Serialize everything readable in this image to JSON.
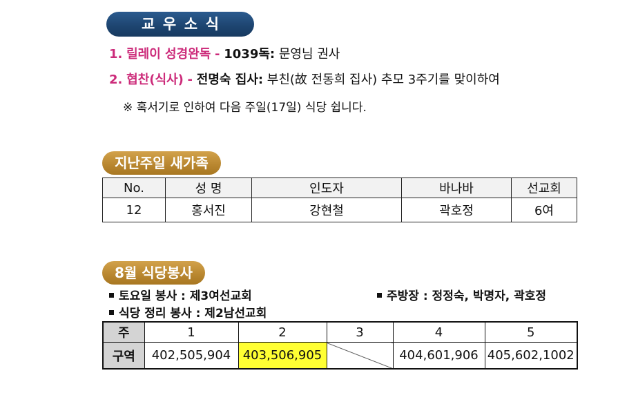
{
  "news": {
    "title": "교우소식",
    "item1": {
      "num": "1.",
      "label": "릴레이 성경완독",
      "dash": "-",
      "key": "1039독:",
      "text": "문영님 권사"
    },
    "item2": {
      "num": "2.",
      "label": "협찬(식사)",
      "dash": "-",
      "key": "전명숙 집사:",
      "text": "부친(故 전동희 집사) 추모 3주기를 맞이하여"
    },
    "note": "※ 혹서기로 인하여 다음 주일(17일) 식당 쉽니다."
  },
  "family": {
    "title": "지난주일 새가족",
    "headers": [
      "No.",
      "성 명",
      "인도자",
      "바나바",
      "선교회"
    ],
    "row": [
      "12",
      "홍서진",
      "강현철",
      "곽호정",
      "6여"
    ]
  },
  "meal": {
    "title": "8월 식당봉사",
    "saturday": "토요일 봉사  : 제3여선교회",
    "cleanup": "식당 정리 봉사 : 제2남선교회",
    "kitchen": "주방장 : 정정숙, 박명자, 곽호정",
    "week_label": "주",
    "area_label": "구역",
    "weeks": [
      "1",
      "2",
      "3",
      "4",
      "5"
    ],
    "areas": [
      "402,505,904",
      "403,506,905",
      "",
      "404,601,906",
      "405,602,1002"
    ],
    "highlight_color": "#ffff33"
  }
}
